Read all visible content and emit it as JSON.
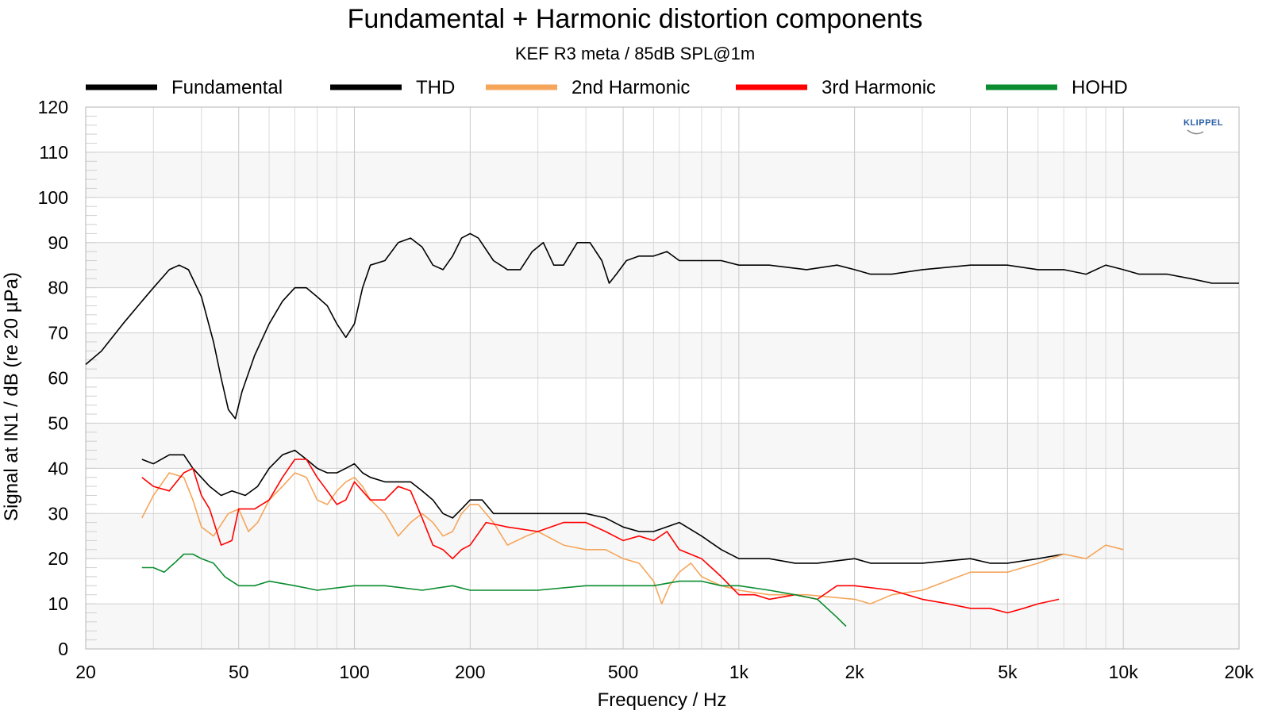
{
  "chart_data": {
    "type": "line",
    "title": "Fundamental + Harmonic distortion components",
    "subtitle": "KEF R3 meta / 85dB SPL@1m",
    "xlabel": "Frequency / Hz",
    "ylabel": "Signal at IN1 / dB (re 20 µPa)",
    "xscale": "log",
    "xlim": [
      20,
      20000
    ],
    "ylim": [
      0,
      120
    ],
    "x_ticks": [
      {
        "value": 20,
        "label": "20"
      },
      {
        "value": 50,
        "label": "50"
      },
      {
        "value": 100,
        "label": "100"
      },
      {
        "value": 200,
        "label": "200"
      },
      {
        "value": 500,
        "label": "500"
      },
      {
        "value": 1000,
        "label": "1k"
      },
      {
        "value": 2000,
        "label": "2k"
      },
      {
        "value": 5000,
        "label": "5k"
      },
      {
        "value": 10000,
        "label": "10k"
      },
      {
        "value": 20000,
        "label": "20k"
      }
    ],
    "y_ticks": [
      0,
      10,
      20,
      30,
      40,
      50,
      60,
      70,
      80,
      90,
      100,
      110,
      120
    ],
    "grid": true,
    "legend_position": "top",
    "logo": "KLIPPEL",
    "series": [
      {
        "name": "Fundamental",
        "color": "#000000",
        "points": [
          [
            20,
            63
          ],
          [
            22,
            66
          ],
          [
            25,
            72
          ],
          [
            28,
            77
          ],
          [
            30,
            80
          ],
          [
            33,
            84
          ],
          [
            35,
            85
          ],
          [
            37,
            84
          ],
          [
            40,
            78
          ],
          [
            43,
            68
          ],
          [
            45,
            60
          ],
          [
            47,
            53
          ],
          [
            49,
            51
          ],
          [
            51,
            57
          ],
          [
            55,
            65
          ],
          [
            60,
            72
          ],
          [
            65,
            77
          ],
          [
            70,
            80
          ],
          [
            75,
            80
          ],
          [
            80,
            78
          ],
          [
            85,
            76
          ],
          [
            90,
            72
          ],
          [
            95,
            69
          ],
          [
            100,
            72
          ],
          [
            105,
            80
          ],
          [
            110,
            85
          ],
          [
            120,
            86
          ],
          [
            130,
            90
          ],
          [
            140,
            91
          ],
          [
            150,
            89
          ],
          [
            160,
            85
          ],
          [
            170,
            84
          ],
          [
            180,
            87
          ],
          [
            190,
            91
          ],
          [
            200,
            92
          ],
          [
            210,
            91
          ],
          [
            230,
            86
          ],
          [
            250,
            84
          ],
          [
            270,
            84
          ],
          [
            290,
            88
          ],
          [
            310,
            90
          ],
          [
            330,
            85
          ],
          [
            350,
            85
          ],
          [
            380,
            90
          ],
          [
            410,
            90
          ],
          [
            440,
            86
          ],
          [
            460,
            81
          ],
          [
            480,
            83
          ],
          [
            510,
            86
          ],
          [
            550,
            87
          ],
          [
            600,
            87
          ],
          [
            650,
            88
          ],
          [
            700,
            86
          ],
          [
            750,
            86
          ],
          [
            800,
            86
          ],
          [
            900,
            86
          ],
          [
            1000,
            85
          ],
          [
            1200,
            85
          ],
          [
            1500,
            84
          ],
          [
            1800,
            85
          ],
          [
            2000,
            84
          ],
          [
            2200,
            83
          ],
          [
            2500,
            83
          ],
          [
            3000,
            84
          ],
          [
            4000,
            85
          ],
          [
            5000,
            85
          ],
          [
            6000,
            84
          ],
          [
            7000,
            84
          ],
          [
            8000,
            83
          ],
          [
            9000,
            85
          ],
          [
            10000,
            84
          ],
          [
            11000,
            83
          ],
          [
            13000,
            83
          ],
          [
            15000,
            82
          ],
          [
            17000,
            81
          ],
          [
            20000,
            81
          ]
        ]
      },
      {
        "name": "THD",
        "color": "#000000",
        "points": [
          [
            28,
            42
          ],
          [
            30,
            41
          ],
          [
            33,
            43
          ],
          [
            36,
            43
          ],
          [
            38,
            40
          ],
          [
            42,
            36
          ],
          [
            45,
            34
          ],
          [
            48,
            35
          ],
          [
            52,
            34
          ],
          [
            56,
            36
          ],
          [
            60,
            40
          ],
          [
            65,
            43
          ],
          [
            70,
            44
          ],
          [
            75,
            42
          ],
          [
            80,
            40
          ],
          [
            85,
            39
          ],
          [
            90,
            39
          ],
          [
            95,
            40
          ],
          [
            100,
            41
          ],
          [
            105,
            39
          ],
          [
            110,
            38
          ],
          [
            120,
            37
          ],
          [
            130,
            37
          ],
          [
            140,
            37
          ],
          [
            150,
            35
          ],
          [
            160,
            33
          ],
          [
            170,
            30
          ],
          [
            180,
            29
          ],
          [
            190,
            31
          ],
          [
            200,
            33
          ],
          [
            215,
            33
          ],
          [
            230,
            30
          ],
          [
            260,
            30
          ],
          [
            300,
            30
          ],
          [
            350,
            30
          ],
          [
            400,
            30
          ],
          [
            450,
            29
          ],
          [
            500,
            27
          ],
          [
            550,
            26
          ],
          [
            600,
            26
          ],
          [
            700,
            28
          ],
          [
            800,
            25
          ],
          [
            900,
            22
          ],
          [
            1000,
            20
          ],
          [
            1200,
            20
          ],
          [
            1400,
            19
          ],
          [
            1600,
            19
          ],
          [
            2000,
            20
          ],
          [
            2200,
            19
          ],
          [
            2500,
            19
          ],
          [
            3000,
            19
          ],
          [
            4000,
            20
          ],
          [
            4500,
            19
          ],
          [
            5000,
            19
          ],
          [
            6000,
            20
          ],
          [
            7000,
            21
          ]
        ]
      },
      {
        "name": "2nd Harmonic",
        "color": "#f5a65b",
        "points": [
          [
            28,
            29
          ],
          [
            30,
            34
          ],
          [
            33,
            39
          ],
          [
            36,
            38
          ],
          [
            38,
            33
          ],
          [
            40,
            27
          ],
          [
            43,
            25
          ],
          [
            47,
            30
          ],
          [
            50,
            31
          ],
          [
            53,
            26
          ],
          [
            56,
            28
          ],
          [
            60,
            33
          ],
          [
            65,
            36
          ],
          [
            70,
            39
          ],
          [
            75,
            38
          ],
          [
            80,
            33
          ],
          [
            85,
            32
          ],
          [
            90,
            35
          ],
          [
            95,
            37
          ],
          [
            100,
            38
          ],
          [
            105,
            36
          ],
          [
            110,
            33
          ],
          [
            120,
            30
          ],
          [
            130,
            25
          ],
          [
            140,
            28
          ],
          [
            150,
            30
          ],
          [
            160,
            28
          ],
          [
            170,
            25
          ],
          [
            180,
            26
          ],
          [
            190,
            30
          ],
          [
            200,
            32
          ],
          [
            210,
            32
          ],
          [
            230,
            28
          ],
          [
            250,
            23
          ],
          [
            280,
            25
          ],
          [
            300,
            26
          ],
          [
            350,
            23
          ],
          [
            400,
            22
          ],
          [
            450,
            22
          ],
          [
            500,
            20
          ],
          [
            550,
            19
          ],
          [
            600,
            15
          ],
          [
            630,
            10
          ],
          [
            660,
            14
          ],
          [
            700,
            17
          ],
          [
            750,
            19
          ],
          [
            800,
            16
          ],
          [
            900,
            14
          ],
          [
            1000,
            13
          ],
          [
            1200,
            12
          ],
          [
            1500,
            12
          ],
          [
            2000,
            11
          ],
          [
            2200,
            10
          ],
          [
            2500,
            12
          ],
          [
            3000,
            13
          ],
          [
            4000,
            17
          ],
          [
            5000,
            17
          ],
          [
            6000,
            19
          ],
          [
            7000,
            21
          ],
          [
            8000,
            20
          ],
          [
            9000,
            23
          ],
          [
            10000,
            22
          ]
        ]
      },
      {
        "name": "3rd Harmonic",
        "color": "#ff0000",
        "points": [
          [
            28,
            38
          ],
          [
            30,
            36
          ],
          [
            33,
            35
          ],
          [
            36,
            39
          ],
          [
            38,
            40
          ],
          [
            40,
            34
          ],
          [
            42,
            31
          ],
          [
            45,
            23
          ],
          [
            48,
            24
          ],
          [
            50,
            31
          ],
          [
            55,
            31
          ],
          [
            60,
            33
          ],
          [
            65,
            38
          ],
          [
            70,
            42
          ],
          [
            75,
            42
          ],
          [
            80,
            38
          ],
          [
            85,
            35
          ],
          [
            90,
            32
          ],
          [
            95,
            33
          ],
          [
            100,
            37
          ],
          [
            110,
            33
          ],
          [
            120,
            33
          ],
          [
            130,
            36
          ],
          [
            140,
            35
          ],
          [
            150,
            29
          ],
          [
            160,
            23
          ],
          [
            170,
            22
          ],
          [
            180,
            20
          ],
          [
            190,
            22
          ],
          [
            200,
            23
          ],
          [
            220,
            28
          ],
          [
            250,
            27
          ],
          [
            300,
            26
          ],
          [
            350,
            28
          ],
          [
            400,
            28
          ],
          [
            450,
            26
          ],
          [
            500,
            24
          ],
          [
            550,
            25
          ],
          [
            600,
            24
          ],
          [
            650,
            26
          ],
          [
            700,
            22
          ],
          [
            800,
            20
          ],
          [
            900,
            16
          ],
          [
            1000,
            12
          ],
          [
            1100,
            12
          ],
          [
            1200,
            11
          ],
          [
            1400,
            12
          ],
          [
            1600,
            11
          ],
          [
            1800,
            14
          ],
          [
            2000,
            14
          ],
          [
            2500,
            13
          ],
          [
            3000,
            11
          ],
          [
            3500,
            10
          ],
          [
            4000,
            9
          ],
          [
            4500,
            9
          ],
          [
            5000,
            8
          ],
          [
            5500,
            9
          ],
          [
            6000,
            10
          ],
          [
            6800,
            11
          ]
        ]
      },
      {
        "name": "HOHD",
        "color": "#0a8c2f",
        "points": [
          [
            28,
            18
          ],
          [
            30,
            18
          ],
          [
            32,
            17
          ],
          [
            34,
            19
          ],
          [
            36,
            21
          ],
          [
            38,
            21
          ],
          [
            40,
            20
          ],
          [
            43,
            19
          ],
          [
            46,
            16
          ],
          [
            50,
            14
          ],
          [
            55,
            14
          ],
          [
            60,
            15
          ],
          [
            70,
            14
          ],
          [
            80,
            13
          ],
          [
            100,
            14
          ],
          [
            120,
            14
          ],
          [
            150,
            13
          ],
          [
            180,
            14
          ],
          [
            200,
            13
          ],
          [
            220,
            13
          ],
          [
            300,
            13
          ],
          [
            400,
            14
          ],
          [
            500,
            14
          ],
          [
            600,
            14
          ],
          [
            700,
            15
          ],
          [
            800,
            15
          ],
          [
            900,
            14
          ],
          [
            1000,
            14
          ],
          [
            1200,
            13
          ],
          [
            1400,
            12
          ],
          [
            1600,
            11
          ],
          [
            1800,
            7
          ],
          [
            1900,
            5
          ]
        ]
      }
    ]
  }
}
